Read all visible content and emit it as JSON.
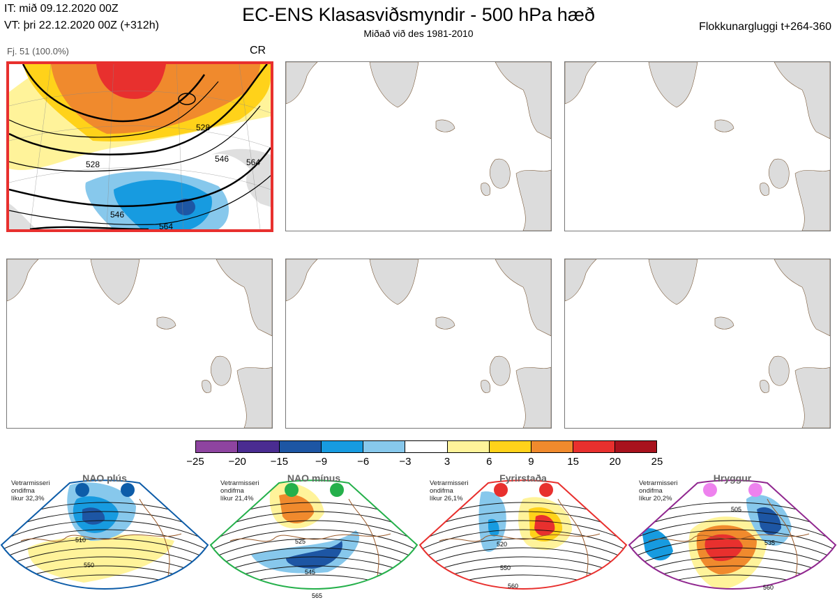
{
  "header": {
    "init_time": "IT: mið 09.12.2020 00Z",
    "valid_time": "VT: þri 22.12.2020 00Z  (+312h)",
    "title": "EC-ENS Klasasviðsmyndir - 500 hPa hæð",
    "subtitle": "Miðað við des 1981-2010",
    "window": "Flokkunargluggi t+264-360"
  },
  "cluster_panel": {
    "member_label": "Fj. 51 (100.0%)",
    "regime_code": "CR",
    "contour_labels": [
      "528",
      "528",
      "546",
      "564",
      "564",
      "546"
    ]
  },
  "colorbar": {
    "ticks": [
      "−25",
      "−20",
      "−15",
      "−9",
      "−6",
      "−3",
      "3",
      "6",
      "9",
      "15",
      "20",
      "25"
    ],
    "colors": [
      "#8e44a0",
      "#4a2c91",
      "#1d56a4",
      "#179be0",
      "#87c8ec",
      "#ffffff",
      "#fff39a",
      "#ffd21a",
      "#f08a2d",
      "#e8302e",
      "#a8121d"
    ]
  },
  "regimes": [
    {
      "name": "NAO plús",
      "info": [
        "Vetrarmisseri",
        "ondifma",
        "líkur 32,3%"
      ],
      "color": "#0d5ca8",
      "labels": [
        "510",
        "550"
      ]
    },
    {
      "name": "NAO mínus",
      "info": [
        "Vetrarmisseri",
        "ondifma",
        "líkur 21,4%"
      ],
      "color": "#25b04b",
      "labels": [
        "525",
        "545",
        "565"
      ]
    },
    {
      "name": "Fyrirstaða",
      "info": [
        "Vetrarmisseri",
        "ondifma",
        "líkur 26,1%"
      ],
      "color": "#e8302e",
      "labels": [
        "520",
        "550",
        "560"
      ]
    },
    {
      "name": "Hryggur",
      "info": [
        "Vetrarmisseri",
        "ondifma",
        "líkur 20,2%"
      ],
      "color": "#90278f",
      "dot_color": "#ee82ee",
      "labels": [
        "505",
        "535",
        "560"
      ]
    }
  ]
}
